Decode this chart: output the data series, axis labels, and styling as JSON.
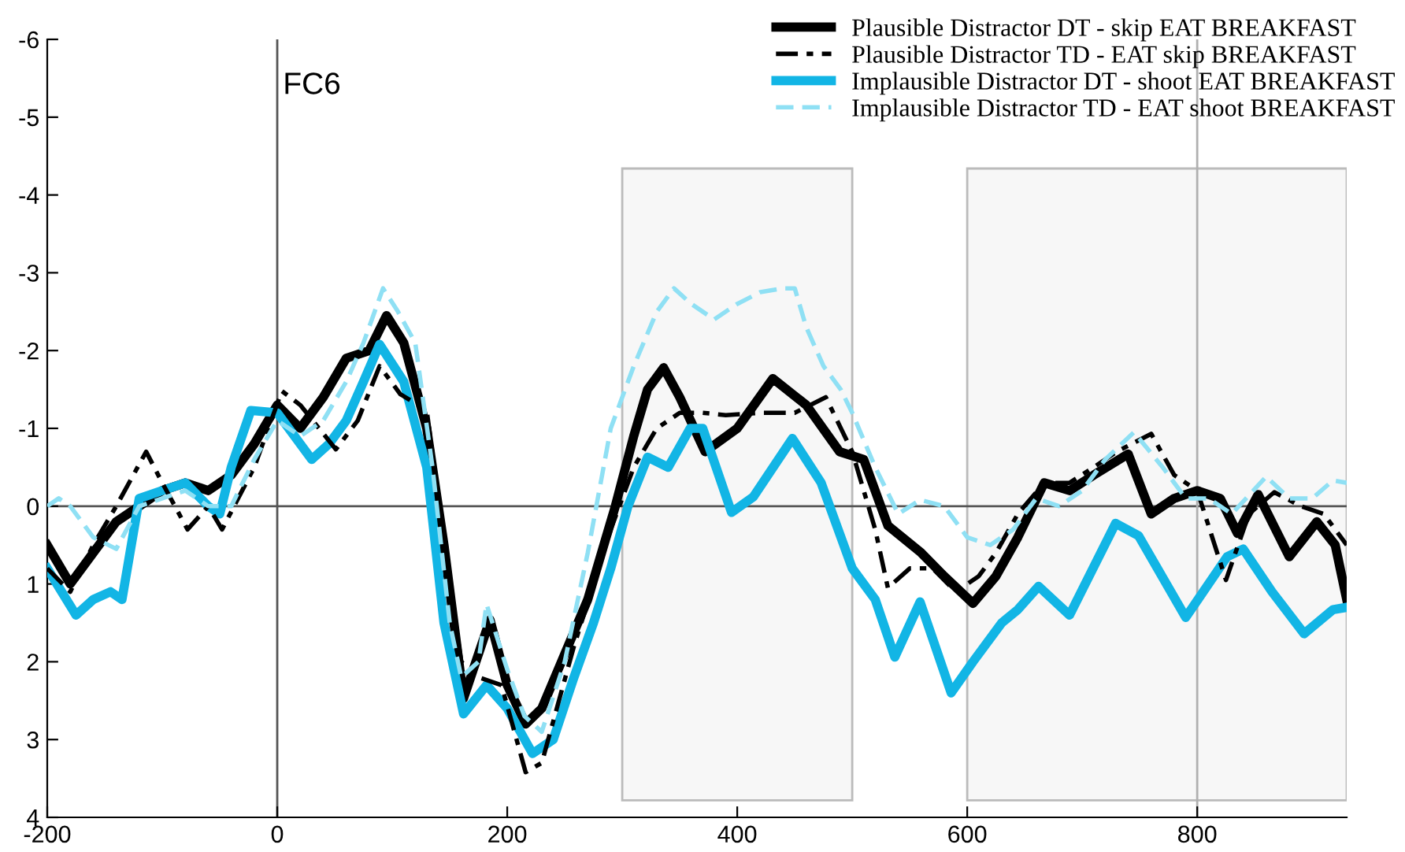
{
  "chart_data": {
    "type": "line",
    "annotations": [
      {
        "text": "FC6",
        "x": 0,
        "y": -5.4
      }
    ],
    "xlim": [
      -200,
      930
    ],
    "xticks": [
      -200,
      0,
      200,
      400,
      600,
      800
    ],
    "ylim": [
      4,
      -6
    ],
    "yticks": [
      -6,
      -5,
      -4,
      -3,
      -2,
      -1,
      0,
      1,
      2,
      3,
      4
    ],
    "grid": false,
    "legend": "top right",
    "ref_lines": [
      {
        "axis": "x",
        "value": 0,
        "color": "#555555"
      },
      {
        "axis": "y",
        "value": 0,
        "color": "#555555"
      },
      {
        "axis": "x",
        "value": 800,
        "color": "#b0b0b0"
      }
    ],
    "bands": [
      {
        "axis": "x",
        "from": 300,
        "to": 500,
        "color": "#f7f7f7"
      },
      {
        "axis": "x",
        "from": 600,
        "to": 930,
        "color": "#f7f7f7"
      }
    ],
    "series": [
      {
        "name": "Plausible Distractor DT - skip EAT BREAKFAST",
        "color": "#000000",
        "line_style": "solid",
        "x": [
          -200,
          -180,
          -160,
          -140,
          -120,
          -100,
          -80,
          -60,
          -40,
          -20,
          0,
          20,
          40,
          60,
          80,
          95,
          110,
          130,
          145,
          162,
          185,
          200,
          216,
          230,
          250,
          270,
          294,
          310,
          322,
          336,
          350,
          372,
          400,
          431,
          460,
          489,
          510,
          531,
          560,
          580,
          605,
          625,
          644,
          667,
          689,
          710,
          740,
          760,
          780,
          800,
          820,
          835,
          853,
          880,
          904,
          920,
          930
        ],
        "values": [
          0.5,
          1.0,
          0.6,
          0.2,
          0.0,
          -0.2,
          -0.3,
          -0.2,
          -0.4,
          -0.8,
          -1.3,
          -1.0,
          -1.4,
          -1.9,
          -2.0,
          -2.45,
          -2.1,
          -1.0,
          0.5,
          2.47,
          1.46,
          2.3,
          2.8,
          2.6,
          1.9,
          1.2,
          0.0,
          -0.9,
          -1.5,
          -1.78,
          -1.4,
          -0.7,
          -1.0,
          -1.64,
          -1.3,
          -0.7,
          -0.6,
          0.25,
          0.6,
          0.9,
          1.25,
          0.9,
          0.4,
          -0.3,
          -0.2,
          -0.4,
          -0.67,
          0.1,
          -0.1,
          -0.2,
          -0.1,
          0.35,
          -0.15,
          0.65,
          0.2,
          0.5,
          1.2
        ]
      },
      {
        "name": "Plausible Distractor TD - EAT skip BREAKFAST",
        "color": "#000000",
        "line_style": "dashed",
        "x": [
          -200,
          -180,
          -160,
          -140,
          -114,
          -100,
          -78,
          -60,
          -48,
          -20,
          4,
          20,
          51,
          70,
          89,
          107,
          130,
          150,
          160,
          175,
          195,
          216,
          230,
          258,
          290,
          310,
          330,
          350,
          370,
          390,
          420,
          450,
          477,
          500,
          520,
          531,
          550,
          570,
          590,
          610,
          625,
          644,
          667,
          689,
          710,
          730,
          760,
          780,
          800,
          825,
          845,
          867,
          890,
          910,
          930
        ],
        "values": [
          0.8,
          1.1,
          0.5,
          0.0,
          -0.7,
          -0.3,
          0.3,
          0.0,
          0.3,
          -0.5,
          -1.48,
          -1.3,
          -0.73,
          -1.1,
          -1.8,
          -1.44,
          -1.23,
          1.0,
          2.0,
          2.2,
          2.3,
          3.42,
          3.3,
          1.8,
          0.3,
          -0.5,
          -1.0,
          -1.2,
          -1.2,
          -1.17,
          -1.2,
          -1.2,
          -1.4,
          -0.7,
          0.3,
          1.05,
          0.8,
          0.8,
          1.1,
          0.9,
          0.6,
          0.1,
          -0.3,
          -0.3,
          -0.5,
          -0.7,
          -0.93,
          -0.4,
          -0.2,
          0.95,
          0.1,
          -0.18,
          0.0,
          0.1,
          0.5
        ]
      },
      {
        "name": "Implausible Distractor DT - shoot EAT BREAKFAST",
        "color": "#12b5e5",
        "line_style": "solid",
        "x": [
          -200,
          -175,
          -160,
          -145,
          -135,
          -120,
          -100,
          -80,
          -60,
          -50,
          -40,
          -23,
          0,
          30,
          45,
          60,
          75,
          89,
          110,
          130,
          145,
          162,
          182,
          200,
          222,
          240,
          258,
          275,
          290,
          305,
          322,
          340,
          359,
          370,
          395,
          414,
          448,
          473,
          500,
          520,
          537,
          559,
          586,
          605,
          630,
          644,
          662,
          689,
          729,
          749,
          790,
          826,
          840,
          865,
          893,
          918,
          930
        ],
        "values": [
          0.8,
          1.4,
          1.2,
          1.1,
          1.2,
          -0.1,
          -0.2,
          -0.3,
          0.0,
          0.1,
          -0.5,
          -1.23,
          -1.2,
          -0.6,
          -0.8,
          -1.1,
          -1.6,
          -2.08,
          -1.6,
          -0.5,
          1.5,
          2.67,
          2.3,
          2.6,
          3.18,
          3.0,
          2.2,
          1.5,
          0.8,
          0.0,
          -0.63,
          -0.5,
          -1.0,
          -1.0,
          0.08,
          -0.12,
          -0.87,
          -0.3,
          0.8,
          1.2,
          1.94,
          1.23,
          2.4,
          2.0,
          1.5,
          1.33,
          1.03,
          1.4,
          0.22,
          0.38,
          1.43,
          0.65,
          0.55,
          1.1,
          1.64,
          1.33,
          1.3
        ]
      },
      {
        "name": "Implausible Distractor TD - EAT shoot BREAKFAST",
        "color": "#8fe0f4",
        "line_style": "dashed",
        "x": [
          -200,
          -190,
          -180,
          -160,
          -140,
          -120,
          -100,
          -80,
          -60,
          -40,
          -20,
          0,
          20,
          40,
          60,
          75,
          92,
          105,
          120,
          135,
          150,
          160,
          175,
          182,
          200,
          215,
          230,
          250,
          270,
          290,
          310,
          330,
          345,
          360,
          380,
          400,
          420,
          440,
          450,
          460,
          475,
          490,
          500,
          520,
          540,
          559,
          580,
          600,
          620,
          640,
          660,
          680,
          700,
          720,
          745,
          770,
          790,
          810,
          830,
          860,
          880,
          900,
          918,
          930
        ],
        "values": [
          0.0,
          -0.1,
          0.0,
          0.4,
          0.55,
          0.0,
          -0.1,
          -0.2,
          0.0,
          0.0,
          -0.6,
          -1.1,
          -0.9,
          -1.1,
          -1.6,
          -2.1,
          -2.8,
          -2.5,
          -2.1,
          -0.5,
          1.5,
          2.2,
          2.0,
          1.26,
          2.1,
          2.7,
          2.9,
          2.0,
          0.6,
          -1.0,
          -1.8,
          -2.5,
          -2.8,
          -2.6,
          -2.4,
          -2.6,
          -2.75,
          -2.8,
          -2.8,
          -2.3,
          -1.8,
          -1.5,
          -1.2,
          -0.5,
          0.1,
          -0.08,
          0.0,
          0.4,
          0.5,
          0.3,
          -0.1,
          0.0,
          -0.2,
          -0.6,
          -0.95,
          -0.5,
          -0.1,
          -0.1,
          0.1,
          -0.38,
          -0.1,
          -0.1,
          -0.33,
          -0.3
        ]
      }
    ]
  }
}
